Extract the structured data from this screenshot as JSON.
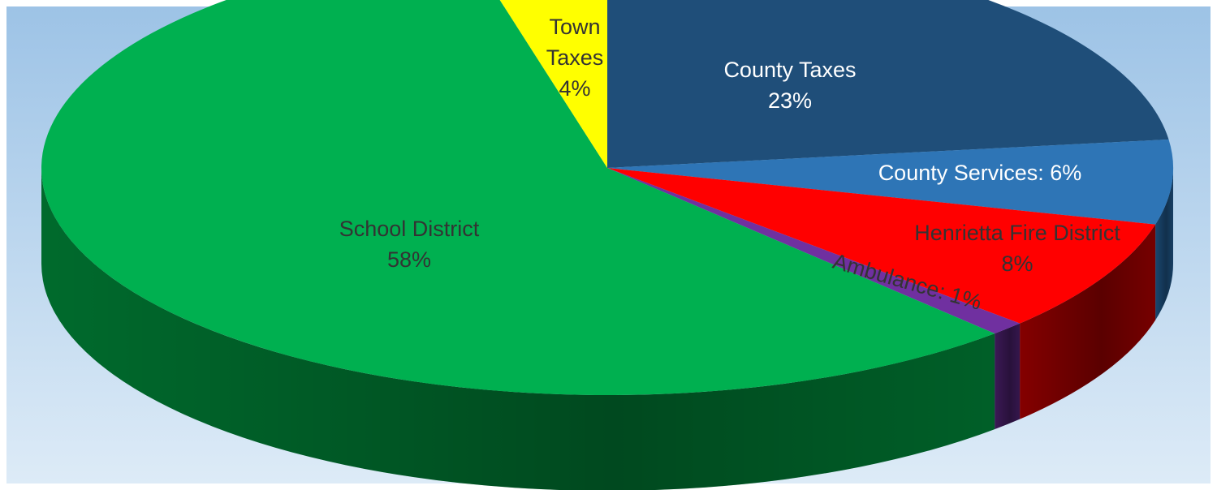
{
  "chart_data": {
    "type": "pie",
    "title": "",
    "slices": [
      {
        "label": "County Taxes",
        "value_label": "23%",
        "value": 23,
        "color": "#1F4E79",
        "side_color": "#12304C",
        "text_color": "#FFFFFF"
      },
      {
        "label": "County Services: 6%",
        "value_label": "",
        "value": 6,
        "color": "#2E75B6",
        "side_color": "#1B4A75",
        "text_color": "#FFFFFF"
      },
      {
        "label": "Henrietta Fire District",
        "value_label": "8%",
        "value": 8,
        "color": "#FF0000",
        "side_color": "#8B0000",
        "text_color": "#333333"
      },
      {
        "label": "Ambulance: 1%",
        "value_label": "",
        "value": 1,
        "color": "#7030A0",
        "side_color": "#3E1A5A",
        "text_color": "#333333"
      },
      {
        "label": "School District",
        "value_label": "58%",
        "value": 58,
        "color": "#00B050",
        "side_color": "#00702F",
        "text_color": "#333333"
      },
      {
        "label": "Town Taxes",
        "value_label": "4%",
        "value": 4,
        "color": "#FFFF00",
        "side_color": "#A6A600",
        "text_color": "#333333"
      }
    ],
    "start_angle_deg": 0,
    "direction": "clockwise",
    "style": "3d-tilted",
    "background": {
      "top": "#9DC3E6",
      "bottom": "#DDEBF7"
    }
  }
}
